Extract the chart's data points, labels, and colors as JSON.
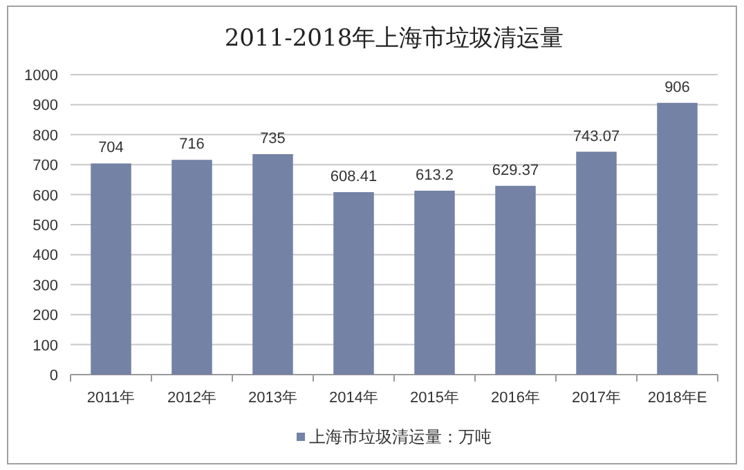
{
  "chart_data": {
    "type": "bar",
    "title": "2011-2018年上海市垃圾清运量",
    "categories": [
      "2011年",
      "2012年",
      "2013年",
      "2014年",
      "2015年",
      "2016年",
      "2017年",
      "2018年E"
    ],
    "series": [
      {
        "name": "上海市垃圾清运量：万吨",
        "color": "#7482a6",
        "values": [
          704,
          716,
          735,
          608.41,
          613.2,
          629.37,
          743.07,
          906
        ]
      }
    ],
    "ylim": [
      0,
      1000
    ],
    "yticks": [
      0,
      100,
      200,
      300,
      400,
      500,
      600,
      700,
      800,
      900,
      1000
    ],
    "grid": "y",
    "legend": "bottom",
    "data_labels": true
  }
}
